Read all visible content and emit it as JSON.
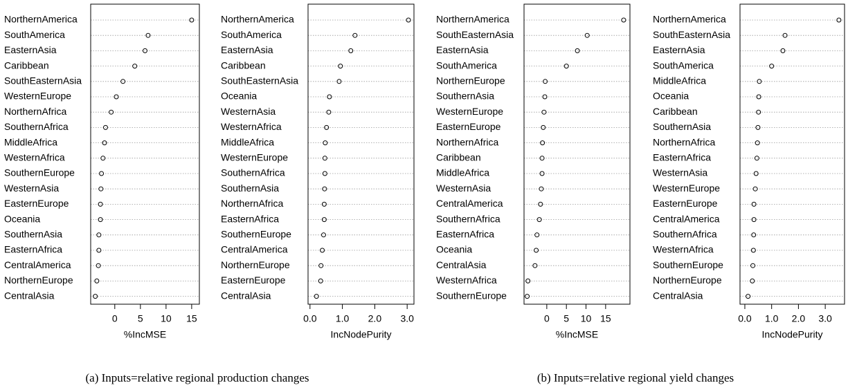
{
  "chart_data": [
    {
      "type": "dot",
      "xlabel": "%IncMSE",
      "categories": [
        "NorthernAmerica",
        "SouthAmerica",
        "EasternAsia",
        "Caribbean",
        "SouthEasternAsia",
        "WesternEurope",
        "NorthernAfrica",
        "SouthernAfrica",
        "MiddleAfrica",
        "WesternAfrica",
        "SouthernEurope",
        "WesternAsia",
        "EasternEurope",
        "Oceania",
        "SouthernAsia",
        "EasternAfrica",
        "CentralAmerica",
        "NorthernEurope",
        "CentralAsia"
      ],
      "values": [
        15,
        6.5,
        5.9,
        3.9,
        1.6,
        0.3,
        -0.7,
        -1.8,
        -2.0,
        -2.3,
        -2.6,
        -2.7,
        -2.8,
        -2.8,
        -3.1,
        -3.1,
        -3.2,
        -3.5,
        -3.8
      ],
      "xlim": [
        -4.7,
        16.5
      ],
      "xticks": [
        0,
        5,
        10,
        15
      ]
    },
    {
      "type": "dot",
      "xlabel": "IncNodePurity",
      "categories": [
        "NorthernAmerica",
        "SouthAmerica",
        "EasternAsia",
        "Caribbean",
        "SouthEasternAsia",
        "Oceania",
        "WesternAsia",
        "WesternAfrica",
        "MiddleAfrica",
        "WesternEurope",
        "SouthernAfrica",
        "SouthernAsia",
        "NorthernAfrica",
        "EasternAfrica",
        "SouthernEurope",
        "CentralAmerica",
        "NorthernEurope",
        "EasternEurope",
        "CentralAsia"
      ],
      "values": [
        3.04,
        1.39,
        1.26,
        0.94,
        0.9,
        0.6,
        0.58,
        0.51,
        0.47,
        0.46,
        0.46,
        0.45,
        0.44,
        0.44,
        0.42,
        0.38,
        0.34,
        0.33,
        0.2
      ],
      "xlim": [
        -0.06,
        3.21
      ],
      "xticks": [
        {
          "value": 0,
          "label": "0.0"
        },
        {
          "value": 1,
          "label": "1.0"
        },
        {
          "value": 2,
          "label": "2.0"
        },
        {
          "value": 3,
          "label": "3.0"
        }
      ]
    },
    {
      "type": "dot",
      "xlabel": "%IncMSE",
      "categories": [
        "NorthernAmerica",
        "SouthEasternAsia",
        "EasternAsia",
        "SouthAmerica",
        "NorthernEurope",
        "SouthernAsia",
        "WesternEurope",
        "EasternEurope",
        "NorthernAfrica",
        "Caribbean",
        "MiddleAfrica",
        "WesternAsia",
        "CentralAmerica",
        "SouthernAfrica",
        "EasternAfrica",
        "Oceania",
        "CentralAsia",
        "WesternAfrica",
        "SouthernEurope"
      ],
      "values": [
        19.6,
        10.3,
        7.8,
        5.0,
        -0.4,
        -0.5,
        -0.7,
        -0.9,
        -1.1,
        -1.2,
        -1.2,
        -1.4,
        -1.6,
        -1.9,
        -2.5,
        -2.7,
        -3.0,
        -4.8,
        -5.0
      ],
      "xlim": [
        -5.8,
        21.2
      ],
      "xticks": [
        0,
        5,
        10,
        15
      ]
    },
    {
      "type": "dot",
      "xlabel": "IncNodePurity",
      "categories": [
        "NorthernAmerica",
        "SouthEasternAsia",
        "EasternAsia",
        "SouthAmerica",
        "MiddleAfrica",
        "Oceania",
        "Caribbean",
        "SouthernAsia",
        "NorthernAfrica",
        "EasternAfrica",
        "WesternAsia",
        "WesternEurope",
        "EasternEurope",
        "CentralAmerica",
        "SouthernAfrica",
        "WesternAfrica",
        "SouthernEurope",
        "NorthernEurope",
        "CentralAsia"
      ],
      "values": [
        3.51,
        1.5,
        1.42,
        1.0,
        0.54,
        0.52,
        0.51,
        0.49,
        0.47,
        0.45,
        0.42,
        0.39,
        0.34,
        0.34,
        0.33,
        0.32,
        0.3,
        0.28,
        0.12
      ],
      "xlim": [
        -0.18,
        3.72
      ],
      "xticks": [
        {
          "value": 0,
          "label": "0.0"
        },
        {
          "value": 1,
          "label": "1.0"
        },
        {
          "value": 2,
          "label": "2.0"
        },
        {
          "value": 3,
          "label": "3.0"
        }
      ]
    }
  ],
  "captions": [
    "(a) Inputs=relative regional production changes",
    "(b) Inputs=relative regional yield changes"
  ]
}
